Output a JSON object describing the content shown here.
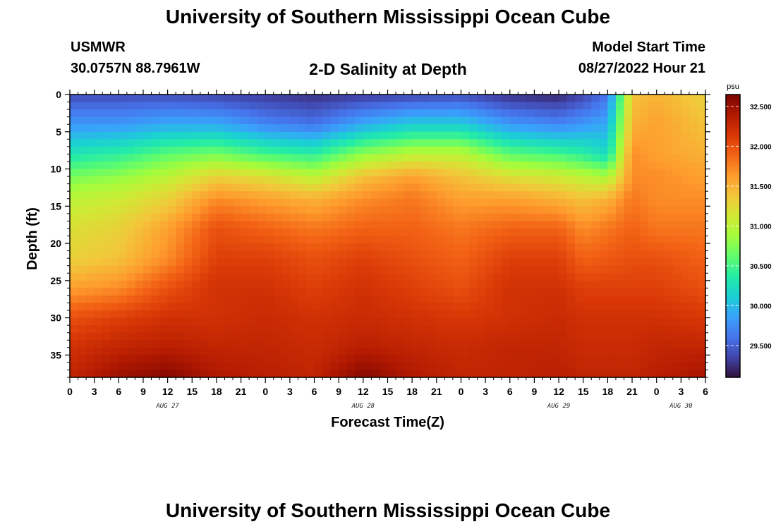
{
  "header": {
    "title": "University of Southern Mississippi Ocean Cube",
    "station": "USMWR",
    "coords": "30.0757N  88.7961W",
    "subtitle": "2-D Salinity at Depth",
    "model_label": "Model Start Time",
    "model_time": "08/27/2022 Hour 21",
    "footer_title": "University of Southern Mississippi Ocean Cube"
  },
  "chart_data": {
    "type": "heatmap",
    "title": "2-D Salinity at Depth",
    "xlabel": "Forecast Time(Z)",
    "ylabel": "Depth (ft)",
    "x_hours_since_aug27_00z": [
      0,
      3,
      6,
      9,
      12,
      15,
      18,
      21,
      24,
      27,
      30,
      33,
      36,
      39,
      42,
      45,
      48,
      51,
      54,
      57,
      60,
      63,
      66,
      69,
      72,
      75,
      78
    ],
    "xtick_labels": [
      "0",
      "3",
      "6",
      "9",
      "12",
      "15",
      "18",
      "21",
      "0",
      "3",
      "6",
      "9",
      "12",
      "15",
      "18",
      "21",
      "0",
      "3",
      "6",
      "9",
      "12",
      "15",
      "18",
      "21",
      "0",
      "3",
      "6"
    ],
    "date_labels": [
      {
        "hour": 12,
        "text": "AUG 27"
      },
      {
        "hour": 36,
        "text": "AUG 28"
      },
      {
        "hour": 60,
        "text": "AUG 29"
      },
      {
        "hour": 75,
        "text": "AUG 30"
      }
    ],
    "yticks": [
      0,
      5,
      10,
      15,
      20,
      25,
      30,
      35
    ],
    "ylim": [
      0,
      38
    ],
    "xlim": [
      0,
      78
    ],
    "colorbar": {
      "unit": "psu",
      "min": 29.1,
      "max": 32.65,
      "ticks": [
        "29.500",
        "30.000",
        "30.500",
        "31.000",
        "31.500",
        "32.000",
        "32.500"
      ],
      "tick_values": [
        29.5,
        30.0,
        30.5,
        31.0,
        31.5,
        32.0,
        32.5
      ],
      "colors": [
        "#30123b",
        "#4145ab",
        "#4675ed",
        "#39a2fc",
        "#1bcfd4",
        "#24eca6",
        "#61fc6c",
        "#a4fc3b",
        "#d1e834",
        "#f3c63a",
        "#fe9b2d",
        "#f36315",
        "#d93806",
        "#b11901",
        "#7a0402"
      ]
    },
    "salinity_grid": {
      "depths_ft": [
        0,
        4,
        8,
        11,
        14,
        18,
        22,
        26,
        30,
        34,
        38
      ],
      "times_hours": [
        0,
        6,
        12,
        18,
        24,
        30,
        36,
        42,
        48,
        54,
        60,
        63,
        66,
        69,
        72,
        78
      ],
      "values": [
        [
          29.4,
          29.4,
          29.4,
          29.35,
          29.3,
          29.25,
          29.3,
          29.35,
          29.4,
          29.25,
          29.2,
          29.35,
          29.6,
          31.4,
          31.5,
          31.3
        ],
        [
          29.8,
          29.8,
          29.9,
          29.9,
          29.7,
          29.6,
          29.9,
          30.1,
          30.1,
          29.8,
          29.7,
          29.8,
          29.9,
          31.5,
          31.6,
          31.4
        ],
        [
          30.3,
          30.4,
          30.6,
          30.7,
          30.5,
          30.4,
          30.8,
          31.0,
          31.0,
          30.6,
          30.5,
          30.4,
          30.2,
          31.7,
          31.6,
          31.5
        ],
        [
          30.7,
          30.8,
          31.0,
          31.3,
          31.2,
          31.0,
          31.4,
          31.6,
          31.4,
          31.2,
          31.1,
          31.0,
          30.9,
          31.7,
          31.7,
          31.6
        ],
        [
          31.0,
          31.1,
          31.3,
          31.7,
          31.6,
          31.5,
          31.7,
          31.8,
          31.6,
          31.6,
          31.5,
          31.4,
          31.5,
          31.8,
          31.7,
          31.7
        ],
        [
          31.2,
          31.3,
          31.6,
          32.0,
          31.9,
          31.8,
          31.9,
          31.9,
          31.8,
          31.9,
          31.9,
          31.7,
          31.8,
          31.9,
          31.8,
          31.8
        ],
        [
          31.3,
          31.4,
          31.7,
          32.1,
          32.1,
          32.0,
          32.1,
          32.0,
          31.9,
          32.1,
          32.1,
          31.9,
          31.95,
          32.0,
          32.0,
          31.9
        ],
        [
          31.6,
          31.7,
          32.0,
          32.2,
          32.2,
          32.1,
          32.2,
          32.1,
          32.0,
          32.2,
          32.2,
          32.1,
          32.1,
          32.1,
          32.1,
          32.0
        ],
        [
          32.0,
          32.1,
          32.2,
          32.2,
          32.25,
          32.2,
          32.25,
          32.2,
          32.15,
          32.2,
          32.25,
          32.2,
          32.2,
          32.2,
          32.2,
          32.15
        ],
        [
          32.2,
          32.3,
          32.35,
          32.3,
          32.3,
          32.25,
          32.35,
          32.3,
          32.25,
          32.3,
          32.3,
          32.25,
          32.25,
          32.25,
          32.3,
          32.3
        ],
        [
          32.3,
          32.5,
          32.6,
          32.4,
          32.35,
          32.3,
          32.6,
          32.4,
          32.3,
          32.3,
          32.35,
          32.3,
          32.3,
          32.3,
          32.35,
          32.45
        ]
      ]
    }
  }
}
